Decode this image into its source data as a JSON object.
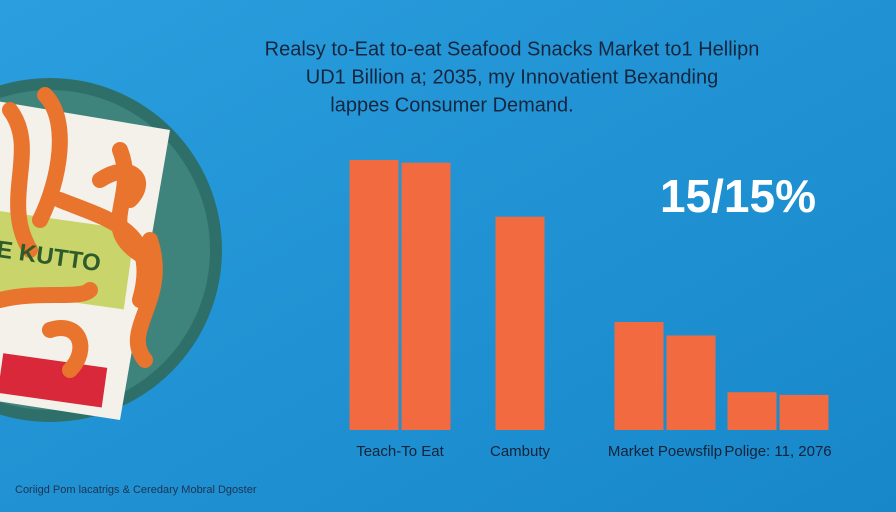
{
  "chart_data": {
    "type": "bar",
    "title": [
      "Realsy to-Eat to-eat Seafood Snacks Market to1 Hellipn",
      "UD1 Billion a; 2035, my Innovatient Bexanding",
      "lappes Consumer Demand."
    ],
    "categories": [
      "Teach-To Eat",
      "Cambuty",
      "Market Poewsfilp",
      "Polige: 11, 2076"
    ],
    "series": [
      {
        "color": "#f26a40",
        "values": [
          100,
          79,
          40,
          14
        ]
      },
      {
        "color": "#f26a40",
        "values": [
          99,
          null,
          35,
          13
        ]
      }
    ],
    "ylim": [
      0,
      100
    ],
    "annotation": "15/15%",
    "package_text": "E KUTTO",
    "caption": "Coriigd Pom lacatrigs & Ceredary Mobral Dgoster"
  }
}
